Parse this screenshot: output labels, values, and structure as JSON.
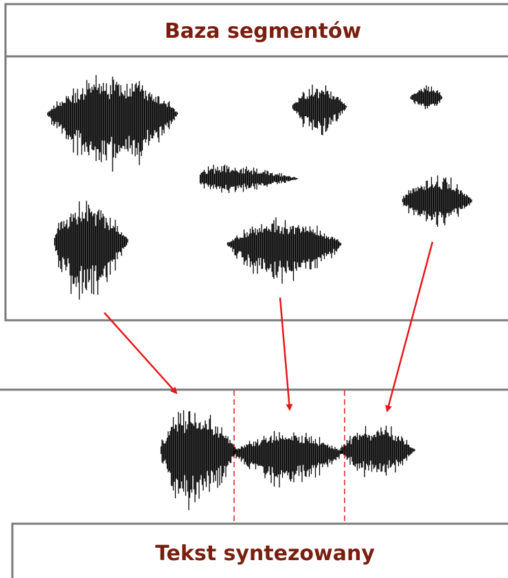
{
  "header": {
    "title": "Baza segmentów"
  },
  "footer": {
    "title": "Tekst syntezowany"
  }
}
